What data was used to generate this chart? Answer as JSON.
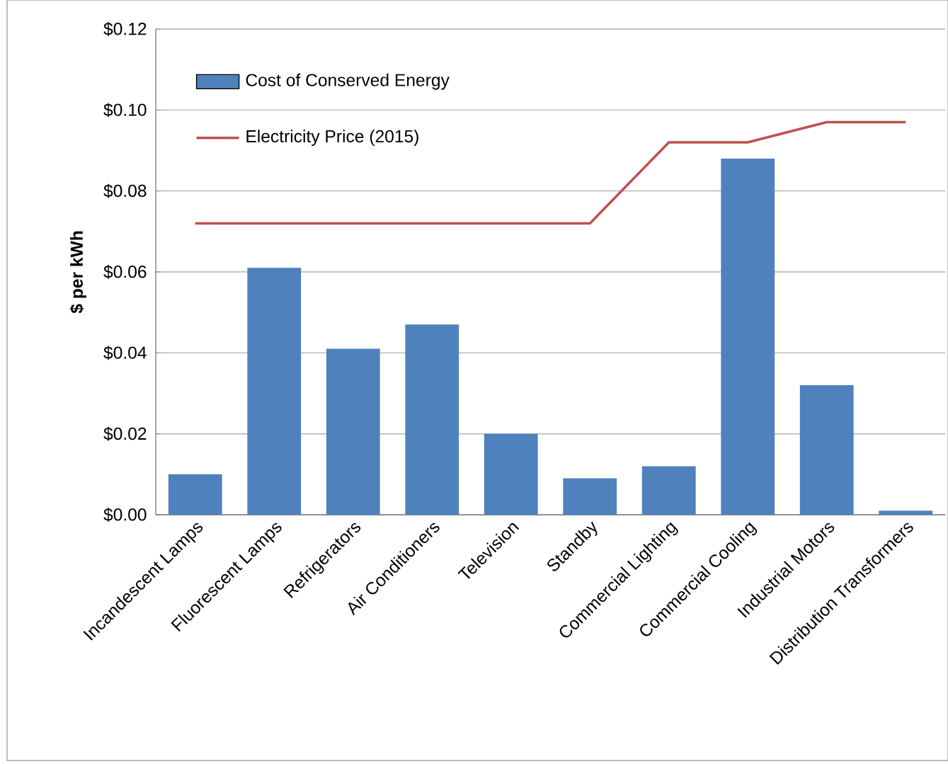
{
  "chart_data": {
    "type": "bar",
    "ylabel": "$ per kWh",
    "categories": [
      "Incandescent Lamps",
      "Fluorescent Lamps",
      "Refrigerators",
      "Air Conditioners",
      "Television",
      "Standby",
      "Commercial Lighting",
      "Commercial Cooling",
      "Industrial Motors",
      "Distribution Transformers"
    ],
    "series": [
      {
        "name": "Cost of Conserved Energy",
        "color": "#4f81bd",
        "values": [
          0.01,
          0.061,
          0.041,
          0.047,
          0.02,
          0.009,
          0.012,
          0.088,
          0.032,
          0.001
        ]
      },
      {
        "name": "Electricity Price (2015)",
        "type": "line",
        "color": "#c0504d",
        "values": [
          0.072,
          0.072,
          0.072,
          0.072,
          0.072,
          0.072,
          0.092,
          0.092,
          0.097,
          0.097
        ]
      }
    ],
    "ylim": [
      0,
      0.12
    ],
    "yticks": [
      {
        "value": 0,
        "label": "$0.00"
      },
      {
        "value": 0.02,
        "label": "$0.02"
      },
      {
        "value": 0.04,
        "label": "$0.04"
      },
      {
        "value": 0.06,
        "label": "$0.06"
      },
      {
        "value": 0.08,
        "label": "$0.08"
      },
      {
        "value": 0.1,
        "label": "$0.10"
      },
      {
        "value": 0.12,
        "label": "$0.12"
      }
    ],
    "grid": "y",
    "legend": "top left"
  }
}
